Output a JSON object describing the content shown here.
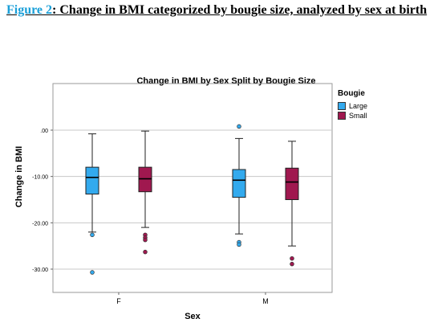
{
  "caption": {
    "link_text": "Figure 2",
    "text": ": Change in BMI categorized by bougie size, analyzed by sex at birth"
  },
  "chart_data": {
    "type": "boxplot",
    "title": "Change in BMI by Sex Split by Bougie Size",
    "xlabel": "Sex",
    "ylabel": "Change in BMI",
    "categories": [
      "F",
      "M"
    ],
    "ylim": [
      -35,
      5
    ],
    "yticks": [
      0,
      -10,
      -20,
      -30
    ],
    "ytick_labels": [
      ".00",
      "-10.00",
      "-20.00",
      "-30.00"
    ],
    "grid": true,
    "legend": {
      "title": "Bougie",
      "placement": "right"
    },
    "series": [
      {
        "name": "Large",
        "color": "#33aaee",
        "boxes": [
          {
            "category": "F",
            "whisker_low": -22.0,
            "q1": -13.8,
            "median": -10.2,
            "q3": -8.0,
            "whisker_high": -0.8,
            "outliers": [
              -22.6,
              -30.7
            ]
          },
          {
            "category": "M",
            "whisker_low": -22.4,
            "q1": -14.5,
            "median": -10.8,
            "q3": -8.5,
            "whisker_high": -1.8,
            "outliers": [
              0.8,
              -24.2,
              -24.7
            ]
          }
        ]
      },
      {
        "name": "Small",
        "color": "#a0184f",
        "boxes": [
          {
            "category": "F",
            "whisker_low": -21.0,
            "q1": -13.3,
            "median": -10.5,
            "q3": -8.0,
            "whisker_high": -0.2,
            "outliers": [
              -22.6,
              -23.2,
              -23.7,
              -26.3
            ]
          },
          {
            "category": "M",
            "whisker_low": -25.0,
            "q1": -15.0,
            "median": -11.2,
            "q3": -8.2,
            "whisker_high": -2.4,
            "outliers": [
              -27.7,
              -28.9
            ]
          }
        ]
      }
    ]
  }
}
